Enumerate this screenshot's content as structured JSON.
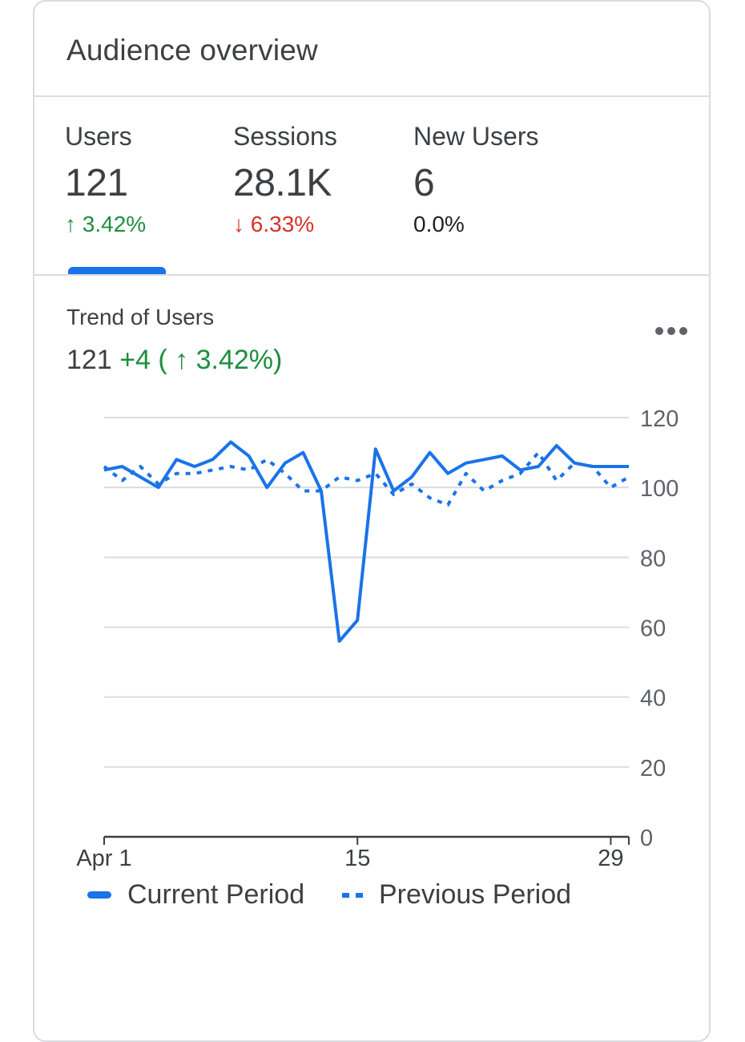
{
  "card": {
    "title": "Audience overview"
  },
  "metrics": [
    {
      "label": "Users",
      "value": "121",
      "delta": "↑ 3.42%",
      "trend": "up"
    },
    {
      "label": "Sessions",
      "value": "28.1K",
      "delta": "↓ 6.33%",
      "trend": "down"
    },
    {
      "label": "New Users",
      "value": "6",
      "delta": "0.0%",
      "trend": "neutral"
    }
  ],
  "trend": {
    "title": "Trend of Users",
    "value": "121",
    "change": "+4 ( ↑ 3.42%)",
    "menu_icon": "more-horiz-icon"
  },
  "colors": {
    "accent": "#1a73e8",
    "up": "#1e8e3e",
    "down": "#d93025",
    "grid": "#dadce0"
  },
  "chart_data": {
    "type": "line",
    "x": [
      "Apr 1",
      "Apr 2",
      "Apr 3",
      "Apr 4",
      "Apr 5",
      "Apr 6",
      "Apr 7",
      "Apr 8",
      "Apr 9",
      "Apr 10",
      "Apr 11",
      "Apr 12",
      "Apr 13",
      "Apr 14",
      "Apr 15",
      "Apr 16",
      "Apr 17",
      "Apr 18",
      "Apr 19",
      "Apr 20",
      "Apr 21",
      "Apr 22",
      "Apr 23",
      "Apr 24",
      "Apr 25",
      "Apr 26",
      "Apr 27",
      "Apr 28",
      "Apr 29",
      "Apr 30"
    ],
    "x_tick_labels": [
      "Apr 1",
      "15",
      "29"
    ],
    "series": [
      {
        "name": "Current Period",
        "style": "solid",
        "values": [
          105,
          106,
          103,
          100,
          108,
          106,
          108,
          113,
          109,
          100,
          107,
          110,
          99,
          56,
          62,
          111,
          99,
          103,
          110,
          104,
          107,
          108,
          109,
          105,
          106,
          112,
          107,
          106,
          106,
          106
        ]
      },
      {
        "name": "Previous Period",
        "style": "dotted",
        "values": [
          106,
          102,
          106,
          101,
          104,
          104,
          105,
          106,
          105,
          108,
          104,
          99,
          99,
          103,
          102,
          104,
          98,
          101,
          97,
          95,
          104,
          99,
          102,
          104,
          110,
          102,
          107,
          106,
          100,
          103
        ]
      }
    ],
    "y_ticks": [
      0,
      20,
      40,
      60,
      80,
      100,
      120
    ],
    "ylim": [
      0,
      120
    ],
    "grid": true,
    "legend": "bottom",
    "y_axis_side": "right"
  }
}
